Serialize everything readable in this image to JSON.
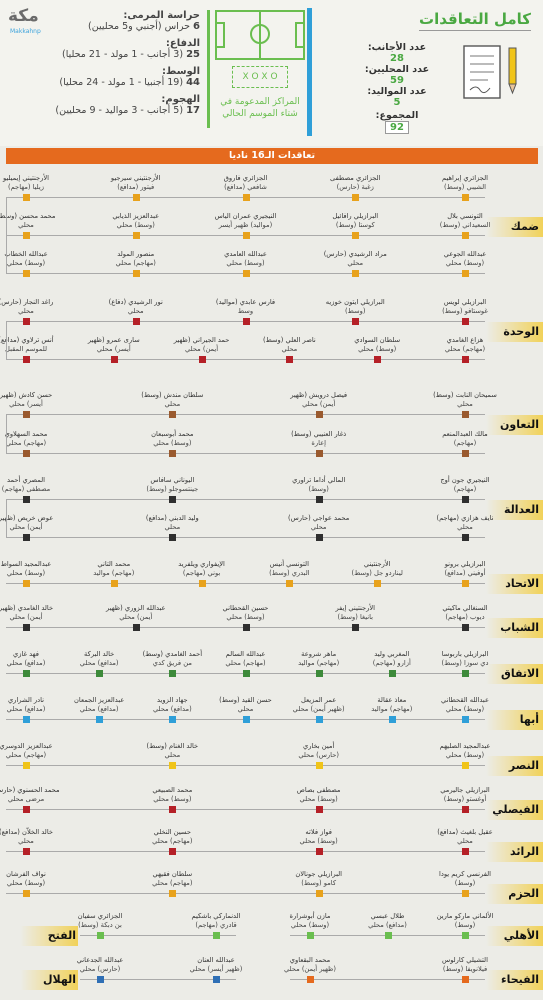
{
  "header": {
    "logo": "مكة",
    "handle": "Makkahnp",
    "summary_title": "كامل التعاقدات",
    "foreigners_label": "عدد الأجانب:",
    "foreigners": "28",
    "locals_label": "عدد المحليين:",
    "locals": "59",
    "born_label": "عدد المواليد:",
    "born": "5",
    "total_label": "المجموع:",
    "total": "92",
    "center_caption": "المراكز المدعومة في شتاء الموسم الحالي",
    "formation": "X O X O",
    "positions": [
      {
        "label": "حراسة المرمى:",
        "value_num": "6",
        "value": "حراس (أجنبي و5 محليين)"
      },
      {
        "label": "الدفاع:",
        "value_num": "25",
        "value": "(3 أجانب - 1 مولد - 21 محليا)"
      },
      {
        "label": "الوسط:",
        "value_num": "44",
        "value": "(19 أجنبيا - 1 مولد - 24 محليا)"
      },
      {
        "label": "الهجوم:",
        "value_num": "17",
        "value": "(5 أجانب - 3 مواليد - 9 محليين)"
      }
    ]
  },
  "banner": "تعاقدات الـ16 ناديا",
  "colors": {
    "damac": "#e8a21c",
    "wehda": "#b52027",
    "taawon": "#9a5a2e",
    "adalah": "#2f2f2f",
    "ittihad": "#e8a21c",
    "shabab": "#2f2f2f",
    "ettifaq": "#3d8a3a",
    "abha": "#2f9fd8",
    "nassr": "#f0c419",
    "faisaly": "#b52027",
    "raed": "#b52027",
    "hazm": "#e8a21c",
    "ahli": "#6abe4f",
    "fateh": "#6abe4f",
    "hilal": "#2f6fb5",
    "fayha": "#e56a1e"
  },
  "teams": [
    {
      "name": "ضمك",
      "players": [
        [
          "الجزائري إبراهيم",
          "الشيبي (وسط)"
        ],
        [
          "الجزائري مصطفى",
          "زغبة (حارس)"
        ],
        [
          "الجزائري فاروق",
          "شافعي (مدافع)"
        ],
        [
          "الأرجنتيني سيرجيو",
          "فيتور (مدافع)"
        ],
        [
          "الأرجنتيني إيميليو",
          "زيليا (مهاجم)"
        ],
        [
          "التونسي بلال",
          "السعيداني (وسط)"
        ],
        [
          "البرازيلي رافائيل",
          "كوستا (وسط)"
        ],
        [
          "النيجيري عمران الياس",
          "(مواليد) ظهير أيسر"
        ],
        [
          "عبدالعزيز الذيابي",
          "(وسط) محلي"
        ],
        [
          "محمد محسن (وسط)",
          "محلي"
        ],
        [
          "عبدالله الجوعي",
          "(وسط) محلي"
        ],
        [
          "مراد الرشيدي (حارس)",
          "محلي"
        ],
        [
          "عبدالله العامدي",
          "(وسط) محلي"
        ],
        [
          "منصور المولد",
          "(مهاجم) محلي"
        ],
        [
          "عبدالله الخطاب",
          "(وسط) محلي"
        ]
      ]
    },
    {
      "name": "الوحدة",
      "players": [
        [
          "البرازيلي لويس",
          "غوستافو (وسط)"
        ],
        [
          "البرازيلي ايتون خوزيه",
          "(وسط)"
        ],
        [
          "فارس عابدي (مواليد)",
          "وسط"
        ],
        [
          "نور الرشيدي (دفاع)",
          "محلي"
        ],
        [
          "راغد النجار (حارس)",
          "محلي"
        ],
        [
          "هزاع الغامدي",
          "(مهاجم) محلي"
        ],
        [
          "سلطان السوادي",
          "(وسط) محلي"
        ],
        [
          "ناصر العلي (وسط)",
          "محلي"
        ],
        [
          "حمد الجيراني (ظهير",
          "أيمن) محلي"
        ],
        [
          "سارى عمرو (ظهير",
          "أيسر) محلي"
        ],
        [
          "أنس ترلاوي (مدافع)",
          "للموسم المقبل"
        ]
      ]
    },
    {
      "name": "التعاون",
      "players": [
        [
          "سميحان النابت (وسط)",
          "محلي"
        ],
        [
          "فيصل درويش (ظهير",
          "أيمن) محلي"
        ],
        [
          "سلطان مندش (وسط)",
          "محلي"
        ],
        [
          "حسن كادش (ظهير",
          "أيسر) محلي"
        ],
        [
          "مالك العبدالمنعم",
          "(مهاجم)"
        ],
        [
          "ذغار العنيبي (وسط)",
          "إعارة"
        ],
        [
          "محمد أبوسبعان",
          "(وسط) محلي"
        ],
        [
          "محمد السهلاوي",
          "(مهاجم) محلي"
        ]
      ]
    },
    {
      "name": "العدالة",
      "players": [
        [
          "النيجيري جون أوج",
          "(مهاجم)"
        ],
        [
          "المالي أداما تراوري",
          "(وسط)"
        ],
        [
          "اليوناني سافاس",
          "جينتسوجلو (وسط)"
        ],
        [
          "المصري أحمد",
          "مصطفى (مهاجم)"
        ],
        [
          "نايف هزازي (مهاجم)",
          "محلي"
        ],
        [
          "محمد عواجي (حارس)",
          "محلي"
        ],
        [
          "وليد الدبني (مدافع)",
          "محلي"
        ],
        [
          "عوض خريص (ظهير",
          "أيمن) محلي"
        ]
      ]
    },
    {
      "name": "الاتحاد",
      "players": [
        [
          "البرازيلي برونو",
          "أوفيني (مدافع)"
        ],
        [
          "الأرجنتيني",
          "ليناردو جل (وسط)"
        ],
        [
          "التونسي أنيس",
          "البدري (وسط)"
        ],
        [
          "الإيفواري ويلفريد",
          "بوني (مهاجم)"
        ],
        [
          "محمد التاني",
          "(مهاجم) مواليد"
        ],
        [
          "عبدالمجيد السواط",
          "(وسط) محلي"
        ]
      ]
    },
    {
      "name": "الشباب",
      "players": [
        [
          "السنغالي ماكيتي",
          "ديوب (مهاجم)"
        ],
        [
          "الأرجنتيني إيفر",
          "بانيغا (وسط)"
        ],
        [
          "حسين القحطاني",
          "(وسط) محلي"
        ],
        [
          "عبدالله الزوري (ظهير",
          "أيمن) محلي"
        ],
        [
          "خالد الغامدي (ظهير",
          "أيمن) محلي"
        ]
      ]
    },
    {
      "name": "الاتفاق",
      "players": [
        [
          "البرازيلي باربوسا",
          "دي سوزا (وسط)"
        ],
        [
          "المغربي وليد",
          "أزارو (مهاجم)"
        ],
        [
          "ماهر شروعة",
          "(مهاجم) مواليد"
        ],
        [
          "عبدالله السالم",
          "(مهاجم) محلي"
        ],
        [
          "أحمد الغامدي (وسط)",
          "من فريق كدي"
        ],
        [
          "خالد البركة",
          "(مدافع) محلي"
        ],
        [
          "فهد غازي",
          "(مدافع) محلي"
        ]
      ]
    },
    {
      "name": "أبها",
      "players": [
        [
          "عبدالله القحطاني",
          "(وسط) محلي"
        ],
        [
          "معاذ عقالة",
          "(مهاجم) مواليد"
        ],
        [
          "عمر المزيعل",
          "(ظهير أيمن) محلي"
        ],
        [
          "حسن القيد (وسط)",
          "محلي"
        ],
        [
          "جهاد الزويد",
          "(مدافع) محلي"
        ],
        [
          "عبدالعزيز الجمعان",
          "(مدافع) محلي"
        ],
        [
          "نادر الشراري",
          "(مدافع) محلي"
        ]
      ]
    },
    {
      "name": "النصر",
      "players": [
        [
          "عبدالمجيد الصليهم",
          "(وسط) محلي"
        ],
        [
          "أمين بخاري",
          "(حارس) محلي"
        ],
        [
          "خالد الغنام (وسط)",
          "محلي"
        ],
        [
          "عبدالعزيز الدوسري",
          "(مهاجم) محلي"
        ]
      ]
    },
    {
      "name": "الفيصلي",
      "players": [
        [
          "البرازيلي جاليرمي",
          "أوغستو (وسط)"
        ],
        [
          "مصطفى بصاص",
          "(وسط) محلي"
        ],
        [
          "محمد الصبيعي",
          "(وسط) محلي"
        ],
        [
          "محمد الحسنوي (حارس)",
          "مرضى محلي"
        ]
      ]
    },
    {
      "name": "الرائد",
      "players": [
        [
          "عقيل بلغيث (مدافع)",
          "محلي"
        ],
        [
          "فواز فلاته",
          "(وسط) محلي"
        ],
        [
          "حسين النخلي",
          "(مهاجم) محلي"
        ],
        [
          "خالد الخلاّن (مدافع)",
          "محلي"
        ]
      ]
    },
    {
      "name": "الحزم",
      "players": [
        [
          "الفرنسي كريم يودا",
          "(وسط)"
        ],
        [
          "البرازيلي جونالان",
          "كامو (وسط)"
        ],
        [
          "سلطان فقيهي",
          "(مهاجم) محلي"
        ],
        [
          "نواف الفرشان",
          "(وسط) محلي"
        ]
      ]
    },
    {
      "name": "الأهلي",
      "players": [
        [
          "الألماني ماركو مارين",
          "(وسط)"
        ],
        [
          "طلال عبسي",
          "(مدافع) محلي"
        ],
        [
          "مازن أبوشرارة",
          "(وسط) محلي"
        ]
      ]
    },
    {
      "name": "الفتح",
      "players": [
        [
          "الدنماركي باشكيم",
          "قادري (مهاجم)"
        ],
        [
          "الجزائري سفيان",
          "بن دبكة (وسط)"
        ]
      ]
    },
    {
      "name": "الهلال",
      "players": [
        [
          "عبدالله العنان",
          "(ظهير أيسر) محلي"
        ],
        [
          "عبدالله الجدعاني",
          "(حارس) محلي"
        ]
      ]
    },
    {
      "name": "الفيحاء",
      "players": [
        [
          "التشيلي كارلوس",
          "فيلانويفا (وسط)"
        ],
        [
          "محمد البقعاوي",
          "(ظهير أيمن) محلي"
        ]
      ]
    }
  ]
}
